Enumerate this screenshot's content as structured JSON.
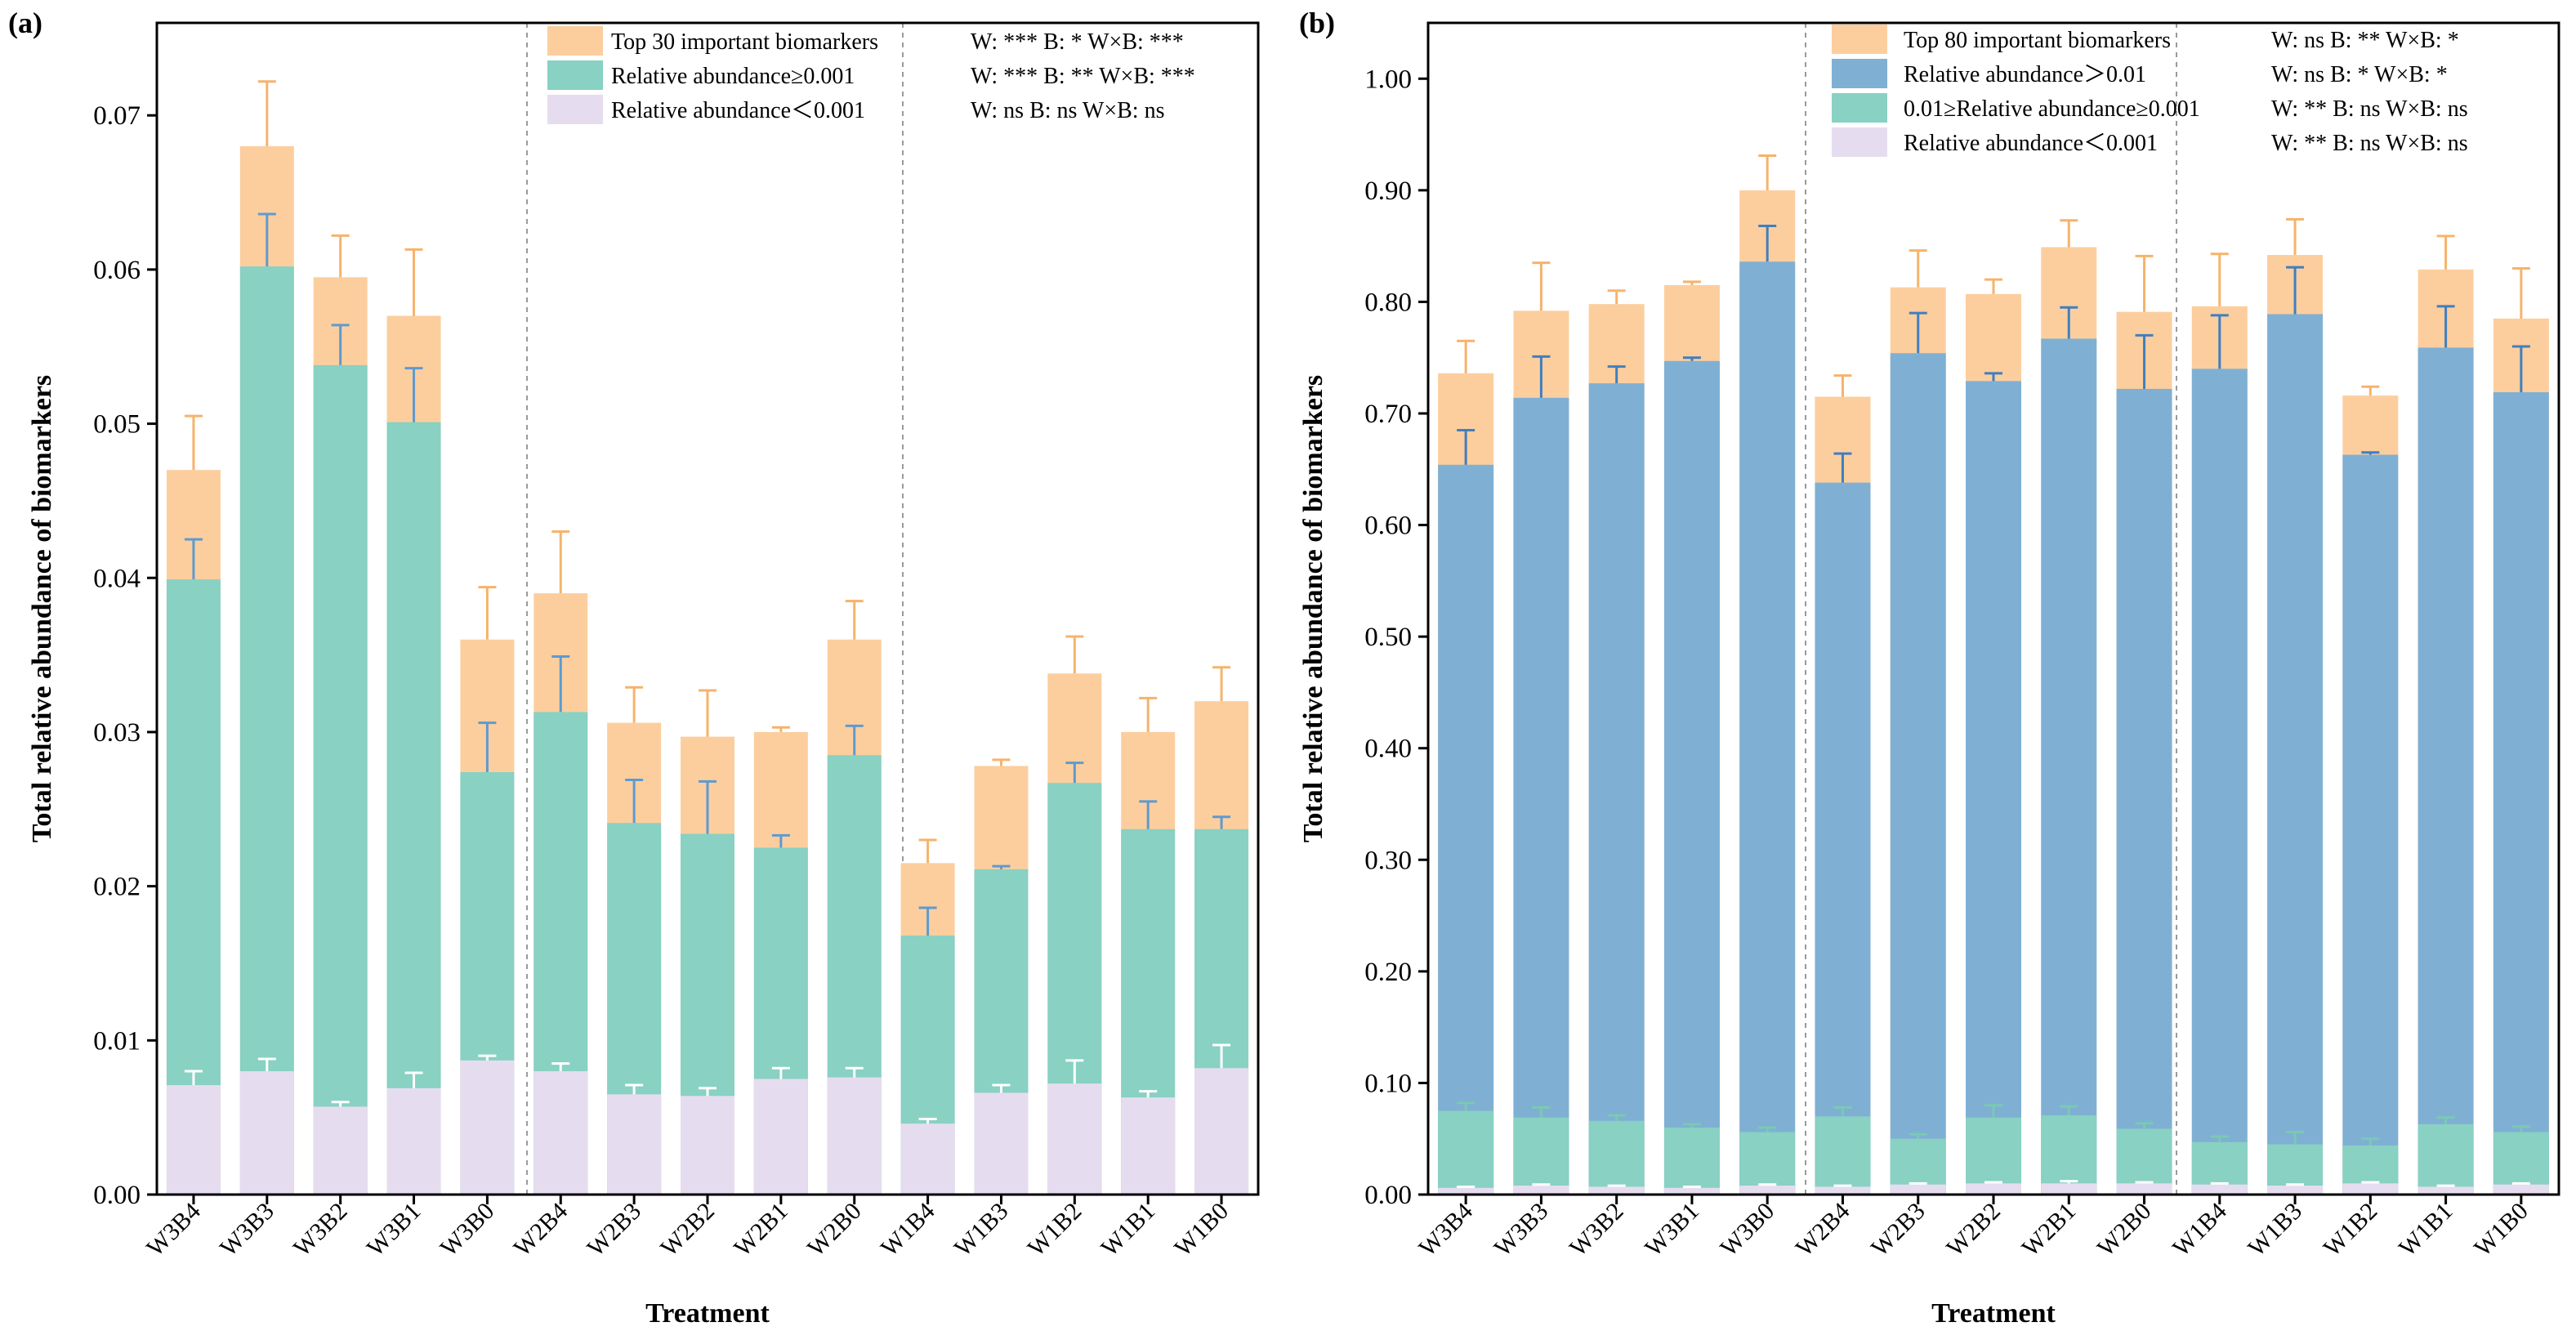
{
  "xlabel": "Treatment",
  "ylabel": "Total relative abundance of biomarkers",
  "chart_data": [
    {
      "type": "bar",
      "panel": "(a)",
      "xlabel": "Treatment",
      "ylabel": "Total relative abundance of biomarkers",
      "ylim": [
        0,
        0.076
      ],
      "yticks": [
        "0.00",
        "0.01",
        "0.02",
        "0.03",
        "0.04",
        "0.05",
        "0.06",
        "0.07"
      ],
      "categories": [
        "W3B4",
        "W3B3",
        "W3B2",
        "W3B1",
        "W3B0",
        "W2B4",
        "W2B3",
        "W2B2",
        "W2B1",
        "W2B0",
        "W1B4",
        "W1B3",
        "W1B2",
        "W1B1",
        "W1B0"
      ],
      "series": [
        {
          "name": "Top 30 important biomarkers",
          "significance": "W: *** B: *   W×B: ***",
          "color": "#FCCE9E",
          "values": [
            0.047,
            0.068,
            0.0595,
            0.057,
            0.036,
            0.039,
            0.0306,
            0.0297,
            0.03,
            0.036,
            0.0215,
            0.0278,
            0.0338,
            0.03,
            0.032
          ],
          "errors": [
            0.0035,
            0.0042,
            0.0027,
            0.0043,
            0.0034,
            0.004,
            0.0023,
            0.003,
            0.0003,
            0.0025,
            0.0015,
            0.0004,
            0.0024,
            0.0022,
            0.0022
          ]
        },
        {
          "name": "Relative abundance≥0.001",
          "significance": "W: *** B: **  W×B: ***",
          "color": "#88D1C3",
          "values": [
            0.0399,
            0.0602,
            0.0538,
            0.0501,
            0.0274,
            0.0313,
            0.0241,
            0.0234,
            0.0225,
            0.0285,
            0.0168,
            0.0211,
            0.0267,
            0.0237,
            0.0237
          ],
          "errors": [
            0.0026,
            0.0034,
            0.0026,
            0.0035,
            0.0032,
            0.0036,
            0.0028,
            0.0034,
            0.0008,
            0.0019,
            0.0018,
            0.0002,
            0.0013,
            0.0018,
            0.0008
          ]
        },
        {
          "name": "Relative abundance＜0.001",
          "significance": "W: ns  B: ns   W×B: ns",
          "color": "#E5DDEF",
          "values": [
            0.0071,
            0.008,
            0.0057,
            0.0069,
            0.0087,
            0.008,
            0.0065,
            0.0064,
            0.0075,
            0.0076,
            0.0046,
            0.0066,
            0.0072,
            0.0063,
            0.0082
          ],
          "errors": [
            0.0009,
            0.0008,
            0.0003,
            0.001,
            0.0003,
            0.0005,
            0.0006,
            0.0005,
            0.0007,
            0.0006,
            0.0003,
            0.0005,
            0.0015,
            0.0004,
            0.0015
          ]
        }
      ]
    },
    {
      "type": "bar",
      "panel": "(b)",
      "xlabel": "Treatment",
      "ylabel": "Total relative abundance of biomarkers",
      "ylim": [
        0,
        1.05
      ],
      "yticks": [
        "0.00",
        "0.10",
        "0.20",
        "0.30",
        "0.40",
        "0.50",
        "0.60",
        "0.70",
        "0.80",
        "0.90",
        "1.00"
      ],
      "categories": [
        "W3B4",
        "W3B3",
        "W3B2",
        "W3B1",
        "W3B0",
        "W2B4",
        "W2B3",
        "W2B2",
        "W2B1",
        "W2B0",
        "W1B4",
        "W1B3",
        "W1B2",
        "W1B1",
        "W1B0"
      ],
      "series": [
        {
          "name": "Top 80 important biomarkers",
          "significance": "W: ns B: ** W×B: *",
          "color": "#FCCE9E",
          "values": [
            0.736,
            0.792,
            0.798,
            0.815,
            0.9,
            0.715,
            0.813,
            0.807,
            0.849,
            0.791,
            0.796,
            0.842,
            0.716,
            0.829,
            0.785
          ],
          "errors": [
            0.029,
            0.043,
            0.012,
            0.003,
            0.031,
            0.019,
            0.033,
            0.013,
            0.024,
            0.05,
            0.047,
            0.032,
            0.008,
            0.03,
            0.045
          ]
        },
        {
          "name": "Relative abundance＞0.01",
          "significance": "W: ns B: *   W×B: *",
          "color": "#7FB0D4",
          "values": [
            0.654,
            0.714,
            0.727,
            0.747,
            0.836,
            0.638,
            0.754,
            0.729,
            0.767,
            0.722,
            0.74,
            0.789,
            0.663,
            0.759,
            0.719
          ],
          "errors": [
            0.031,
            0.037,
            0.015,
            0.003,
            0.032,
            0.026,
            0.036,
            0.007,
            0.028,
            0.048,
            0.048,
            0.042,
            0.002,
            0.037,
            0.041
          ]
        },
        {
          "name": "0.01≥Relative abundance≥0.001",
          "significance": "W: ** B: ns W×B: ns",
          "color": "#88D1C3",
          "values": [
            0.075,
            0.069,
            0.066,
            0.06,
            0.056,
            0.07,
            0.05,
            0.069,
            0.071,
            0.059,
            0.047,
            0.045,
            0.044,
            0.063,
            0.056
          ],
          "errors": [
            0.007,
            0.009,
            0.005,
            0.003,
            0.004,
            0.008,
            0.004,
            0.011,
            0.008,
            0.005,
            0.005,
            0.011,
            0.006,
            0.006,
            0.005
          ]
        },
        {
          "name": "Relative abundance＜0.001",
          "significance": "W: ** B: ns W×B: ns",
          "color": "#E5DDEF",
          "values": [
            0.006,
            0.008,
            0.007,
            0.006,
            0.008,
            0.007,
            0.009,
            0.01,
            0.01,
            0.01,
            0.009,
            0.008,
            0.01,
            0.007,
            0.009
          ],
          "errors": [
            0.001,
            0.001,
            0.001,
            0.001,
            0.001,
            0.001,
            0.001,
            0.001,
            0.002,
            0.001,
            0.001,
            0.001,
            0.001,
            0.001,
            0.001
          ]
        }
      ]
    }
  ]
}
